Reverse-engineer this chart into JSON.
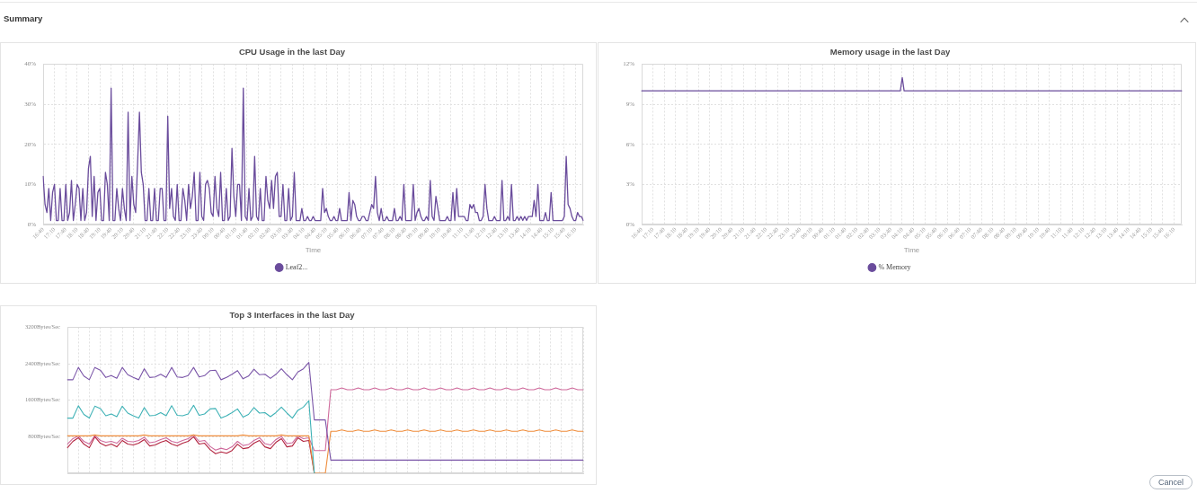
{
  "chart_data": [
    {
      "type": "other",
      "title": "Summary",
      "annotations": [
        "Cancel"
      ]
    },
    {
      "type": "line",
      "title": "CPU Usage in the last Day",
      "xlabel": "Time",
      "categories": [
        "16:40",
        null,
        null,
        null,
        null,
        null,
        "17:10",
        null,
        null,
        null,
        null,
        null,
        "17:40",
        null,
        null,
        null,
        null,
        null,
        "18:10",
        null,
        null,
        null,
        null,
        null,
        "18:40",
        null,
        null,
        null,
        null,
        null,
        "19:10",
        null,
        null,
        null,
        null,
        null,
        "19:40",
        null,
        null,
        null,
        null,
        null,
        "20:10",
        null,
        null,
        null,
        null,
        null,
        "20:40",
        null,
        null,
        null,
        null,
        null,
        "21:10",
        null,
        null,
        null,
        null,
        null,
        "21:40",
        null,
        null,
        null,
        null,
        null,
        "22:10",
        null,
        null,
        null,
        null,
        null,
        "22:40",
        null,
        null,
        null,
        null,
        null,
        "23:10",
        null,
        null,
        null,
        null,
        null,
        "23:40",
        null,
        null,
        null,
        null,
        null,
        "00:10",
        null,
        null,
        null,
        null,
        null,
        "00:40",
        null,
        null,
        null,
        null,
        null,
        "01:10",
        null,
        null,
        null,
        null,
        null,
        "01:40",
        null,
        null,
        null,
        null,
        null,
        "02:10",
        null,
        null,
        null,
        null,
        null,
        "02:40",
        null,
        null,
        null,
        null,
        null,
        "03:10",
        null,
        null,
        null,
        null,
        null,
        "03:40",
        null,
        null,
        null,
        null,
        null,
        "04:10",
        null,
        null,
        null,
        null,
        null,
        "04:40",
        null,
        null,
        null,
        null,
        null,
        "05:10",
        null,
        null,
        null,
        null,
        null,
        "05:40",
        null,
        null,
        null,
        null,
        null,
        "06:10",
        null,
        null,
        null,
        null,
        null,
        "06:40",
        null,
        null,
        null,
        null,
        null,
        "07:10",
        null,
        null,
        null,
        null,
        null,
        "07:40",
        null,
        null,
        null,
        null,
        null,
        "08:10",
        null,
        null,
        null,
        null,
        null,
        "08:40",
        null,
        null,
        null,
        null,
        null,
        "09:10",
        null,
        null,
        null,
        null,
        null,
        "09:40",
        null,
        null,
        null,
        null,
        null,
        "10:10",
        null,
        null,
        null,
        null,
        null,
        "10:40",
        null,
        null,
        null,
        null,
        null,
        "11:10",
        null,
        null,
        null,
        null,
        null,
        "11:40",
        null,
        null,
        null,
        null,
        null,
        "12:10",
        null,
        null,
        null,
        null,
        null,
        "12:40",
        null,
        null,
        null,
        null,
        null,
        "13:10",
        null,
        null,
        null,
        null,
        null,
        "13:40",
        null,
        null,
        null,
        null,
        null,
        "14:10",
        null,
        null,
        null,
        null,
        null,
        "14:40",
        null,
        null,
        null,
        null,
        null,
        "15:10",
        null,
        null,
        null,
        null,
        null,
        "15:40",
        null,
        null,
        null,
        null,
        null,
        "16:10",
        null,
        null,
        null,
        null
      ],
      "series": [
        {
          "name": "Leaf2...",
          "color": "#6a4c9c",
          "values": [
            12,
            5,
            3,
            9,
            1,
            8,
            10,
            1,
            1,
            9,
            1,
            1,
            10,
            1,
            3,
            11,
            1,
            5,
            10,
            9,
            1,
            9,
            1,
            3,
            14,
            17,
            2,
            12,
            1,
            8,
            9,
            1,
            1,
            13,
            10,
            1,
            34,
            1,
            1,
            9,
            4,
            1,
            9,
            4,
            1,
            28,
            1,
            12,
            5,
            3,
            15,
            28,
            13,
            10,
            1,
            1,
            9,
            1,
            1,
            9,
            1,
            1,
            9,
            9,
            1,
            1,
            27,
            4,
            9,
            2,
            1,
            10,
            1,
            1,
            9,
            6,
            1,
            10,
            4,
            7,
            13,
            1,
            1,
            13,
            2,
            1,
            10,
            11,
            9,
            3,
            2,
            12,
            4,
            2,
            13,
            1,
            1,
            9,
            1,
            2,
            19,
            7,
            2,
            10,
            10,
            1,
            34,
            2,
            1,
            9,
            1,
            2,
            17,
            2,
            1,
            9,
            1,
            1,
            12,
            6,
            4,
            11,
            4,
            12,
            13,
            2,
            2,
            10,
            1,
            1,
            9,
            1,
            2,
            13,
            1,
            1,
            1,
            4,
            1,
            1,
            2,
            1,
            1,
            2,
            1,
            1,
            1,
            1,
            9,
            3,
            4,
            2,
            1,
            1,
            2,
            1,
            1,
            4,
            1,
            1,
            1,
            1,
            8,
            1,
            6,
            5,
            2,
            1,
            1,
            2,
            2,
            1,
            1,
            3,
            5,
            4,
            12,
            3,
            1,
            4,
            1,
            1,
            2,
            1,
            1,
            1,
            4,
            1,
            1,
            2,
            1,
            10,
            1,
            1,
            1,
            1,
            10,
            1,
            3,
            4,
            2,
            1,
            1,
            2,
            1,
            11,
            2,
            1,
            7,
            4,
            1,
            1,
            1,
            1,
            2,
            1,
            1,
            8,
            1,
            9,
            2,
            2,
            2,
            2,
            1,
            1,
            5,
            4,
            5,
            3,
            3,
            1,
            1,
            2,
            10,
            4,
            1,
            1,
            1,
            2,
            1,
            1,
            1,
            11,
            1,
            1,
            2,
            1,
            10,
            1,
            1,
            2,
            1,
            2,
            1,
            2,
            1,
            2,
            2,
            2,
            6,
            2,
            10,
            1,
            1,
            1,
            3,
            1,
            1,
            8,
            1,
            1,
            1,
            1,
            1,
            1,
            2,
            17,
            5,
            4,
            2,
            1,
            1,
            3,
            2,
            2,
            1
          ]
        }
      ],
      "ylim": [
        0,
        40
      ],
      "yticks": [
        {
          "value": 0,
          "label": "0%"
        },
        {
          "value": 10,
          "label": "10%"
        },
        {
          "value": 20,
          "label": "20%"
        },
        {
          "value": 30,
          "label": "30%"
        },
        {
          "value": 40,
          "label": "40%"
        }
      ],
      "grid": true,
      "legend": "bottom"
    },
    {
      "type": "line",
      "title": "Memory usage in the last Day",
      "xlabel": "Time",
      "categories": [
        "16:40",
        null,
        null,
        null,
        null,
        null,
        "17:10",
        null,
        null,
        null,
        null,
        null,
        "17:40",
        null,
        null,
        null,
        null,
        null,
        "18:10",
        null,
        null,
        null,
        null,
        null,
        "18:40",
        null,
        null,
        null,
        null,
        null,
        "19:10",
        null,
        null,
        null,
        null,
        null,
        "19:40",
        null,
        null,
        null,
        null,
        null,
        "20:10",
        null,
        null,
        null,
        null,
        null,
        "20:40",
        null,
        null,
        null,
        null,
        null,
        "21:10",
        null,
        null,
        null,
        null,
        null,
        "21:40",
        null,
        null,
        null,
        null,
        null,
        "22:10",
        null,
        null,
        null,
        null,
        null,
        "22:40",
        null,
        null,
        null,
        null,
        null,
        "23:10",
        null,
        null,
        null,
        null,
        null,
        "23:40",
        null,
        null,
        null,
        null,
        null,
        "00:10",
        null,
        null,
        null,
        null,
        null,
        "00:40",
        null,
        null,
        null,
        null,
        null,
        "01:10",
        null,
        null,
        null,
        null,
        null,
        "01:40",
        null,
        null,
        null,
        null,
        null,
        "02:10",
        null,
        null,
        null,
        null,
        null,
        "02:40",
        null,
        null,
        null,
        null,
        null,
        "03:10",
        null,
        null,
        null,
        null,
        null,
        "03:40",
        null,
        null,
        null,
        null,
        null,
        "04:10",
        null,
        null,
        null,
        null,
        null,
        "04:40",
        null,
        null,
        null,
        null,
        null,
        "05:10",
        null,
        null,
        null,
        null,
        null,
        "05:40",
        null,
        null,
        null,
        null,
        null,
        "06:10",
        null,
        null,
        null,
        null,
        null,
        "06:40",
        null,
        null,
        null,
        null,
        null,
        "07:10",
        null,
        null,
        null,
        null,
        null,
        "07:40",
        null,
        null,
        null,
        null,
        null,
        "08:10",
        null,
        null,
        null,
        null,
        null,
        "08:40",
        null,
        null,
        null,
        null,
        null,
        "09:10",
        null,
        null,
        null,
        null,
        null,
        "09:40",
        null,
        null,
        null,
        null,
        null,
        "10:10",
        null,
        null,
        null,
        null,
        null,
        "10:40",
        null,
        null,
        null,
        null,
        null,
        "11:10",
        null,
        null,
        null,
        null,
        null,
        "11:40",
        null,
        null,
        null,
        null,
        null,
        "12:10",
        null,
        null,
        null,
        null,
        null,
        "12:40",
        null,
        null,
        null,
        null,
        null,
        "13:10",
        null,
        null,
        null,
        null,
        null,
        "13:40",
        null,
        null,
        null,
        null,
        null,
        "14:10",
        null,
        null,
        null,
        null,
        null,
        "14:40",
        null,
        null,
        null,
        null,
        null,
        "15:10",
        null,
        null,
        null,
        null,
        null,
        "15:40",
        null,
        null,
        null,
        null,
        null,
        "16:10",
        null,
        null,
        null,
        null
      ],
      "series": [
        {
          "name": "% Memory",
          "color": "#6a4c9c",
          "values": [
            10,
            10,
            10,
            10,
            10,
            10,
            10,
            10,
            10,
            10,
            10,
            10,
            10,
            10,
            10,
            10,
            10,
            10,
            10,
            10,
            10,
            10,
            10,
            10,
            10,
            10,
            10,
            10,
            10,
            10,
            10,
            10,
            10,
            10,
            10,
            10,
            10,
            10,
            10,
            10,
            10,
            10,
            10,
            10,
            10,
            10,
            10,
            10,
            10,
            10,
            10,
            10,
            10,
            10,
            10,
            10,
            10,
            10,
            10,
            10,
            10,
            10,
            10,
            10,
            10,
            10,
            10,
            10,
            10,
            10,
            10,
            10,
            10,
            10,
            10,
            10,
            10,
            10,
            10,
            10,
            10,
            10,
            10,
            10,
            10,
            10,
            10,
            10,
            10,
            10,
            10,
            10,
            10,
            10,
            10,
            10,
            10,
            10,
            10,
            10,
            10,
            10,
            10,
            10,
            10,
            10,
            10,
            10,
            10,
            10,
            10,
            10,
            10,
            10,
            10,
            10,
            10,
            10,
            10,
            10,
            10,
            10,
            10,
            10,
            10,
            10,
            10,
            10,
            10,
            10,
            10,
            10,
            10,
            10,
            10,
            10,
            10,
            10,
            11,
            10,
            10,
            10,
            10,
            10,
            10,
            10,
            10,
            10,
            10,
            10,
            10,
            10,
            10,
            10,
            10,
            10,
            10,
            10,
            10,
            10,
            10,
            10,
            10,
            10,
            10,
            10,
            10,
            10,
            10,
            10,
            10,
            10,
            10,
            10,
            10,
            10,
            10,
            10,
            10,
            10,
            10,
            10,
            10,
            10,
            10,
            10,
            10,
            10,
            10,
            10,
            10,
            10,
            10,
            10,
            10,
            10,
            10,
            10,
            10,
            10,
            10,
            10,
            10,
            10,
            10,
            10,
            10,
            10,
            10,
            10,
            10,
            10,
            10,
            10,
            10,
            10,
            10,
            10,
            10,
            10,
            10,
            10,
            10,
            10,
            10,
            10,
            10,
            10,
            10,
            10,
            10,
            10,
            10,
            10,
            10,
            10,
            10,
            10,
            10,
            10,
            10,
            10,
            10,
            10,
            10,
            10,
            10,
            10,
            10,
            10,
            10,
            10,
            10,
            10,
            10,
            10,
            10,
            10,
            10,
            10,
            10,
            10,
            10,
            10,
            10,
            10,
            10,
            10,
            10,
            10,
            10,
            10,
            10,
            10,
            10,
            10,
            10,
            10,
            10,
            10,
            10,
            10,
            10,
            10,
            10,
            10,
            10
          ]
        }
      ],
      "ylim": [
        0,
        12
      ],
      "yticks": [
        {
          "value": 0,
          "label": "0%"
        },
        {
          "value": 3,
          "label": "3%"
        },
        {
          "value": 6,
          "label": "6%"
        },
        {
          "value": 9,
          "label": "9%"
        },
        {
          "value": 12,
          "label": "12%"
        }
      ],
      "grid": true,
      "legend": "bottom"
    },
    {
      "type": "line",
      "title": "Top 3 Interfaces in the last Day",
      "categories": [
        null,
        null,
        null,
        null,
        null,
        null,
        null,
        null,
        null,
        null,
        null,
        null,
        null,
        null,
        null,
        null,
        null,
        null,
        null,
        null,
        null,
        null,
        null,
        null,
        null,
        null,
        null,
        null,
        null,
        null,
        null,
        null,
        null,
        null,
        null,
        null,
        null,
        null,
        null,
        null,
        null,
        null,
        null,
        null,
        null,
        null,
        null,
        null,
        null,
        null,
        null,
        null,
        null,
        null,
        null,
        null,
        null,
        null,
        null,
        null,
        null,
        null,
        null,
        null,
        null,
        null,
        null,
        null,
        null,
        null,
        null,
        null,
        null,
        null,
        null,
        null,
        null,
        null,
        null,
        null,
        null,
        null,
        null,
        null,
        null,
        null,
        null,
        null,
        null,
        null,
        null,
        null,
        null,
        null,
        null
      ],
      "series": [
        {
          "color": "#7a55a8",
          "values": [
            2050,
            2050,
            2320,
            2130,
            2050,
            2320,
            2260,
            2100,
            2140,
            2080,
            2320,
            2160,
            2100,
            2050,
            2290,
            2100,
            2110,
            2170,
            2100,
            2320,
            2110,
            2100,
            2140,
            2320,
            2110,
            2140,
            2250,
            2260,
            2050,
            2100,
            2170,
            2250,
            2070,
            2130,
            2280,
            2160,
            2170,
            2080,
            2170,
            2290,
            2160,
            2050,
            2220,
            2290,
            2430,
            1170,
            1170,
            1170,
            290,
            290,
            290,
            290,
            290,
            290,
            290,
            290,
            290,
            290,
            290,
            290,
            290,
            290,
            290,
            290,
            290,
            290,
            290,
            290,
            290,
            290,
            290,
            290,
            290,
            290,
            290,
            290,
            290,
            290,
            290,
            290,
            290,
            290,
            290,
            290,
            290,
            290,
            290,
            290,
            290,
            290,
            290,
            290,
            290,
            290,
            290
          ]
        },
        {
          "color": "#3fb2b6",
          "values": [
            1210,
            1210,
            1480,
            1290,
            1210,
            1470,
            1420,
            1260,
            1300,
            1240,
            1470,
            1320,
            1260,
            1210,
            1440,
            1260,
            1270,
            1330,
            1260,
            1480,
            1270,
            1260,
            1300,
            1490,
            1270,
            1300,
            1410,
            1420,
            1210,
            1260,
            1330,
            1410,
            1230,
            1290,
            1440,
            1320,
            1330,
            1240,
            1330,
            1450,
            1320,
            1210,
            1380,
            1450,
            1590,
            0,
            null,
            null,
            null,
            null,
            null,
            null,
            null,
            null,
            null,
            null,
            null,
            null,
            null,
            null,
            null,
            null,
            null,
            null,
            null,
            null,
            null,
            null,
            null,
            null,
            null,
            null,
            null,
            null,
            null,
            null,
            null,
            null,
            null,
            null,
            null,
            null,
            null,
            null,
            null,
            null,
            null,
            null,
            null,
            null,
            null,
            null,
            null,
            null,
            null
          ]
        },
        {
          "color": "#ef8d3c",
          "values": [
            820,
            820,
            820,
            820,
            820,
            840,
            820,
            820,
            820,
            820,
            820,
            820,
            820,
            820,
            840,
            820,
            820,
            820,
            820,
            820,
            820,
            820,
            820,
            840,
            820,
            820,
            820,
            820,
            820,
            820,
            820,
            820,
            840,
            820,
            820,
            820,
            820,
            820,
            820,
            840,
            820,
            820,
            820,
            820,
            820,
            0,
            0,
            0,
            920,
            920,
            950,
            920,
            920,
            950,
            920,
            920,
            950,
            920,
            920,
            950,
            920,
            920,
            950,
            920,
            920,
            950,
            920,
            920,
            950,
            920,
            920,
            950,
            920,
            920,
            950,
            920,
            920,
            950,
            920,
            920,
            950,
            920,
            920,
            950,
            920,
            920,
            950,
            920,
            920,
            950,
            920,
            920,
            950,
            920,
            920
          ]
        },
        {
          "color": "#b3243f",
          "values": [
            560,
            700,
            780,
            640,
            560,
            800,
            660,
            600,
            640,
            580,
            720,
            640,
            620,
            660,
            740,
            600,
            620,
            680,
            720,
            640,
            600,
            660,
            700,
            800,
            640,
            660,
            520,
            430,
            470,
            440,
            500,
            640,
            540,
            560,
            660,
            720,
            580,
            540,
            680,
            760,
            580,
            600,
            780,
            700,
            720,
            0,
            null,
            null,
            null,
            null,
            null,
            null,
            null,
            null,
            null,
            null,
            null,
            null,
            null,
            null,
            null,
            null,
            null,
            null,
            null,
            null,
            null,
            null,
            null,
            null,
            null,
            null,
            null,
            null,
            null,
            null,
            null,
            null,
            null,
            null,
            null,
            null,
            null,
            null,
            null,
            null,
            null,
            null,
            null,
            null,
            null,
            null,
            null,
            null,
            null
          ]
        },
        {
          "color": "#cf6a9c",
          "values": [
            640,
            760,
            820,
            700,
            640,
            830,
            720,
            680,
            700,
            660,
            770,
            700,
            690,
            720,
            790,
            670,
            690,
            740,
            780,
            700,
            670,
            720,
            760,
            840,
            700,
            720,
            590,
            510,
            550,
            520,
            580,
            700,
            610,
            630,
            720,
            780,
            650,
            620,
            740,
            810,
            650,
            670,
            820,
            760,
            780,
            500,
            500,
            500,
            1830,
            1830,
            1870,
            1830,
            1830,
            1870,
            1830,
            1830,
            1870,
            1830,
            1830,
            1870,
            1830,
            1830,
            1870,
            1830,
            1830,
            1870,
            1830,
            1830,
            1870,
            1830,
            1830,
            1870,
            1830,
            1830,
            1870,
            1830,
            1830,
            1870,
            1830,
            1830,
            1870,
            1830,
            1830,
            1870,
            1830,
            1830,
            1870,
            1830,
            1830,
            1870,
            1830,
            1830,
            1870,
            1830,
            1830
          ]
        }
      ],
      "ylim": [
        0,
        3200
      ],
      "yticks": [
        {
          "value": 800,
          "label": "800Bytes/Sec"
        },
        {
          "value": 1600,
          "label": "1600Bytes/Sec"
        },
        {
          "value": 2400,
          "label": "2400Bytes/Sec"
        },
        {
          "value": 3200,
          "label": "3200Bytes/Sec"
        }
      ],
      "grid": true,
      "tick_labels": "y"
    }
  ]
}
